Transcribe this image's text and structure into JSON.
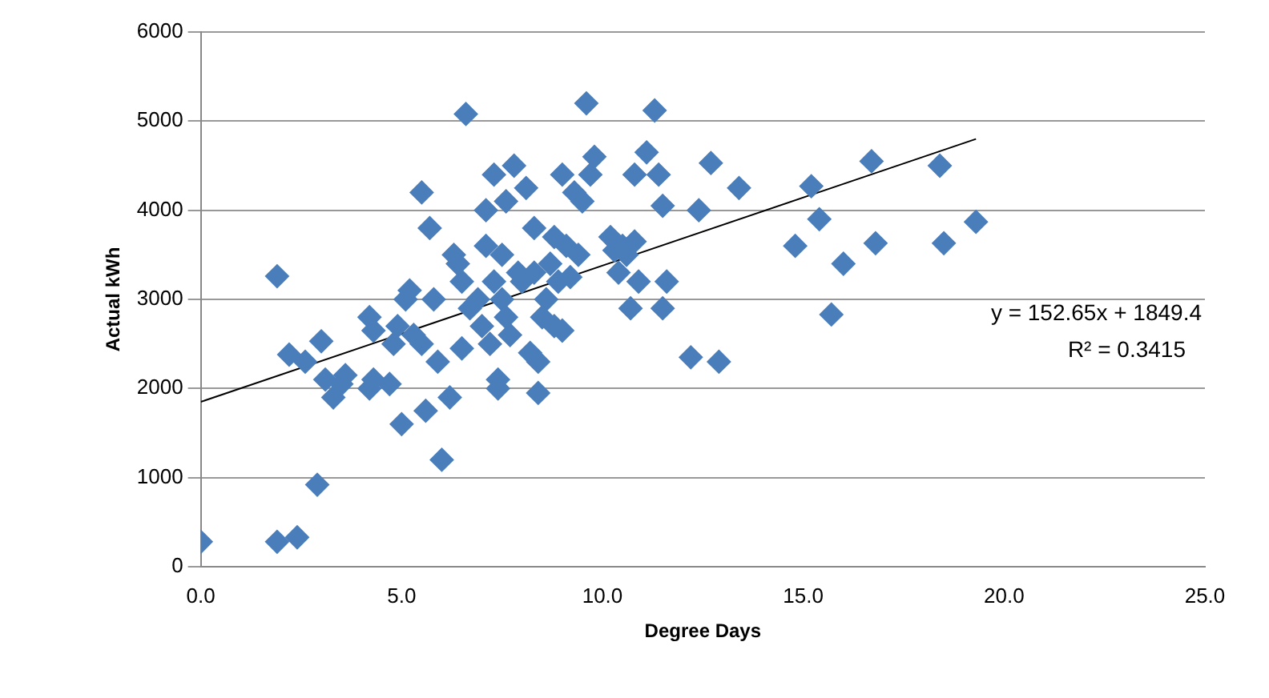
{
  "chart_data": {
    "type": "scatter",
    "xlabel": "Degree Days",
    "ylabel": "Actual kWh",
    "xlim": [
      0,
      25
    ],
    "xticks": [
      {
        "value": 0,
        "label": "0.0"
      },
      {
        "value": 5,
        "label": "5.0"
      },
      {
        "value": 10,
        "label": "10.0"
      },
      {
        "value": 15,
        "label": "15.0"
      },
      {
        "value": 20,
        "label": "20.0"
      },
      {
        "value": 25,
        "label": "25.0"
      }
    ],
    "ylim": [
      0,
      6000
    ],
    "yticks": [
      0,
      1000,
      2000,
      3000,
      4000,
      5000,
      6000
    ],
    "grid": "y",
    "legend": false,
    "annotations": [
      "y = 152.65x + 1849.4",
      "R² = 0.3415"
    ],
    "series": [
      {
        "type": "scatter",
        "marker": "diamond",
        "color": "#4a7ebb",
        "x": [
          0,
          1.9,
          2.4,
          2.9,
          1.9,
          2.2,
          2.6,
          3.0,
          3.1,
          3.3,
          3.5,
          3.6,
          4.2,
          4.3,
          4.2,
          4.3,
          4.7,
          4.9,
          4.8,
          5.0,
          5.1,
          5.2,
          5.3,
          5.5,
          5.5,
          5.6,
          5.7,
          5.8,
          5.9,
          6.0,
          6.2,
          6.3,
          6.4,
          6.5,
          6.5,
          6.6,
          6.7,
          6.9,
          7.0,
          7.1,
          7.1,
          7.2,
          7.3,
          7.3,
          7.4,
          7.4,
          7.5,
          7.5,
          7.6,
          7.6,
          7.7,
          7.8,
          7.9,
          8.0,
          8.1,
          8.2,
          8.3,
          8.3,
          8.4,
          8.4,
          8.5,
          8.6,
          8.7,
          8.8,
          8.8,
          8.9,
          9.0,
          9.0,
          9.1,
          9.2,
          9.3,
          9.4,
          9.5,
          9.6,
          9.7,
          9.8,
          10.2,
          10.3,
          10.4,
          10.5,
          10.6,
          10.7,
          10.8,
          10.8,
          10.9,
          11.1,
          11.3,
          11.4,
          11.5,
          11.5,
          11.6,
          12.2,
          12.4,
          12.7,
          12.9,
          13.4,
          14.8,
          15.2,
          15.4,
          15.7,
          16.0,
          16.7,
          16.8,
          18.4,
          18.5,
          19.3
        ],
        "values": [
          280,
          280,
          330,
          920,
          3260,
          2380,
          2300,
          2530,
          2100,
          1900,
          2050,
          2150,
          2800,
          2650,
          2000,
          2100,
          2050,
          2700,
          2500,
          1600,
          3000,
          3100,
          2600,
          2500,
          4200,
          1750,
          3800,
          3000,
          2300,
          1200,
          1900,
          3500,
          3400,
          3200,
          2450,
          5080,
          2900,
          3000,
          2700,
          4000,
          3600,
          2500,
          4400,
          3200,
          2000,
          2100,
          3500,
          3000,
          4100,
          2800,
          2600,
          4500,
          3300,
          3200,
          4250,
          2400,
          3800,
          3300,
          2300,
          1950,
          2800,
          3000,
          3400,
          2700,
          3700,
          3200,
          4400,
          2650,
          3600,
          3250,
          4200,
          3500,
          4100,
          5200,
          4400,
          4600,
          3700,
          3550,
          3300,
          3600,
          3500,
          2900,
          4400,
          3650,
          3200,
          4650,
          5120,
          4400,
          2900,
          4050,
          3200,
          2350,
          4000,
          4530,
          2300,
          4250,
          3600,
          4270,
          3900,
          2830,
          3400,
          4550,
          3630,
          4500,
          3630,
          3870
        ]
      },
      {
        "type": "line",
        "color": "#000000",
        "x": [
          0,
          19.3
        ],
        "values": [
          1850,
          4800
        ]
      }
    ]
  }
}
